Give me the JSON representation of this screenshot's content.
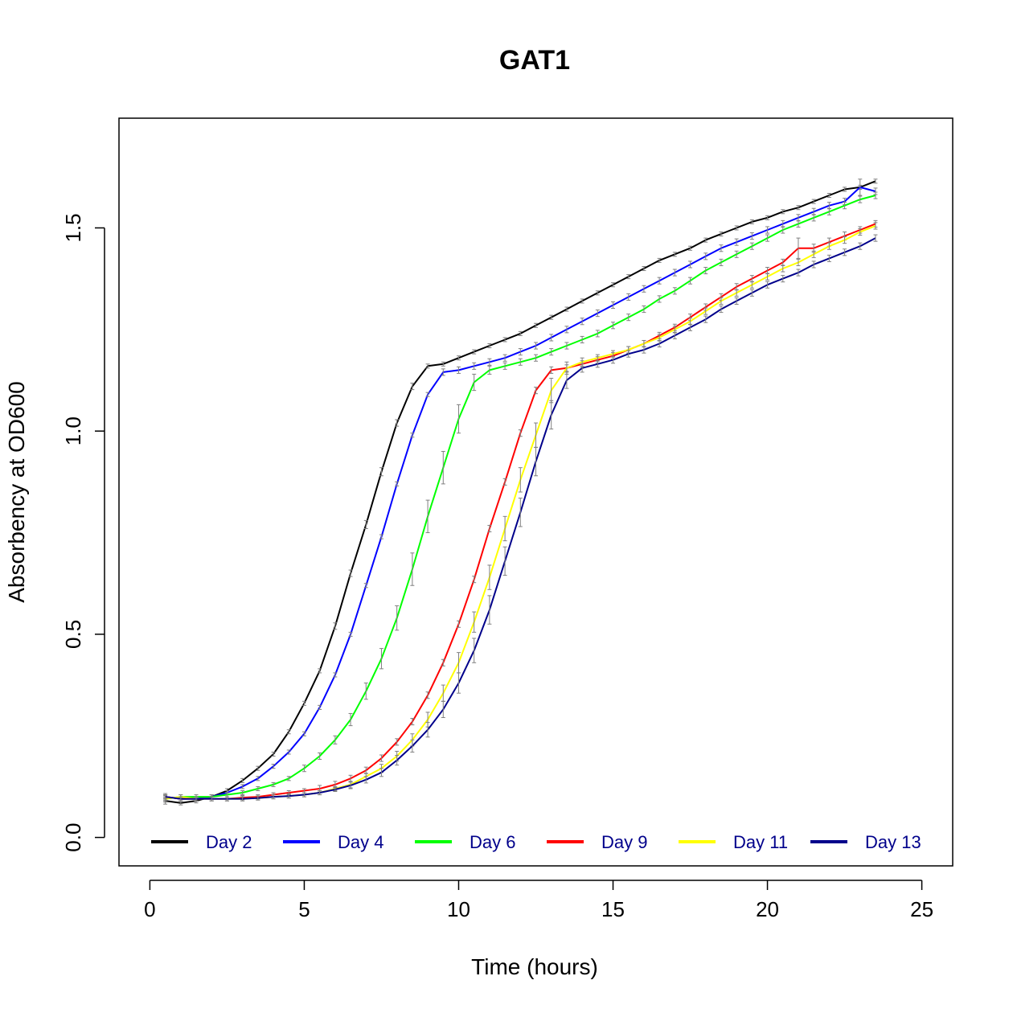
{
  "chart_data": {
    "type": "line",
    "title": "GAT1",
    "xlabel": "Time (hours)",
    "ylabel": "Absorbency at OD600",
    "xlim": [
      -1,
      26
    ],
    "ylim": [
      -0.07,
      1.77
    ],
    "xticks": [
      0,
      5,
      10,
      15,
      20,
      25
    ],
    "xtick_labels": [
      "0",
      "5",
      "10",
      "15",
      "20",
      "25"
    ],
    "yticks": [
      0,
      0.5,
      1,
      1.5
    ],
    "ytick_labels": [
      "0.0",
      "0.5",
      "1.0",
      "1.5"
    ],
    "grid": false,
    "legend_position": "bottom",
    "legend_text_color": "#00008b",
    "errorbar_color": "#808080",
    "x": [
      0.5,
      1.0,
      1.5,
      2.0,
      2.5,
      3.0,
      3.5,
      4.0,
      4.5,
      5.0,
      5.5,
      6.0,
      6.5,
      7.0,
      7.5,
      8.0,
      8.5,
      9.0,
      9.5,
      10.0,
      10.5,
      11.0,
      11.5,
      12.0,
      12.5,
      13.0,
      13.5,
      14.0,
      14.5,
      15.0,
      15.5,
      16.0,
      16.5,
      17.0,
      17.5,
      18.0,
      18.5,
      19.0,
      19.5,
      20.0,
      20.5,
      21.0,
      21.5,
      22.0,
      22.5,
      23.0,
      23.5
    ],
    "series": [
      {
        "name": "Day 2",
        "color": "#000000",
        "values": [
          0.09,
          0.085,
          0.09,
          0.1,
          0.115,
          0.14,
          0.17,
          0.205,
          0.26,
          0.33,
          0.41,
          0.52,
          0.65,
          0.77,
          0.9,
          1.02,
          1.11,
          1.16,
          1.165,
          1.18,
          1.195,
          1.21,
          1.225,
          1.24,
          1.26,
          1.28,
          1.3,
          1.32,
          1.34,
          1.36,
          1.38,
          1.4,
          1.42,
          1.435,
          1.45,
          1.47,
          1.485,
          1.5,
          1.515,
          1.525,
          1.54,
          1.55,
          1.565,
          1.58,
          1.595,
          1.6,
          1.615
        ],
        "errors": [
          0.008,
          0.005,
          0.005,
          0.005,
          0.005,
          0.005,
          0.005,
          0.005,
          0.005,
          0.005,
          0.005,
          0.008,
          0.008,
          0.01,
          0.01,
          0.008,
          0.008,
          0.005,
          0.005,
          0.005,
          0.005,
          0.005,
          0.005,
          0.005,
          0.005,
          0.005,
          0.005,
          0.005,
          0.005,
          0.005,
          0.005,
          0.005,
          0.005,
          0.005,
          0.005,
          0.005,
          0.005,
          0.005,
          0.005,
          0.005,
          0.005,
          0.005,
          0.005,
          0.005,
          0.005,
          0.005,
          0.005
        ]
      },
      {
        "name": "Day 4",
        "color": "#0000ff",
        "values": [
          0.1,
          0.095,
          0.095,
          0.1,
          0.11,
          0.125,
          0.145,
          0.175,
          0.21,
          0.255,
          0.32,
          0.4,
          0.5,
          0.62,
          0.74,
          0.87,
          0.99,
          1.09,
          1.145,
          1.15,
          1.16,
          1.17,
          1.18,
          1.195,
          1.21,
          1.23,
          1.25,
          1.27,
          1.29,
          1.31,
          1.33,
          1.35,
          1.37,
          1.39,
          1.41,
          1.43,
          1.45,
          1.465,
          1.48,
          1.495,
          1.51,
          1.525,
          1.54,
          1.555,
          1.565,
          1.6,
          1.59
        ],
        "errors": [
          0.008,
          0.005,
          0.005,
          0.005,
          0.005,
          0.005,
          0.005,
          0.005,
          0.005,
          0.005,
          0.005,
          0.005,
          0.005,
          0.005,
          0.005,
          0.005,
          0.005,
          0.005,
          0.008,
          0.008,
          0.008,
          0.008,
          0.008,
          0.008,
          0.008,
          0.008,
          0.008,
          0.008,
          0.008,
          0.008,
          0.008,
          0.008,
          0.008,
          0.008,
          0.008,
          0.008,
          0.008,
          0.008,
          0.008,
          0.008,
          0.008,
          0.008,
          0.008,
          0.008,
          0.008,
          0.02,
          0.008
        ]
      },
      {
        "name": "Day 6",
        "color": "#00ff00",
        "values": [
          0.095,
          0.1,
          0.1,
          0.1,
          0.105,
          0.11,
          0.12,
          0.13,
          0.145,
          0.17,
          0.2,
          0.24,
          0.29,
          0.36,
          0.44,
          0.54,
          0.66,
          0.79,
          0.91,
          1.03,
          1.12,
          1.15,
          1.16,
          1.17,
          1.18,
          1.195,
          1.21,
          1.225,
          1.24,
          1.26,
          1.28,
          1.3,
          1.325,
          1.345,
          1.37,
          1.395,
          1.415,
          1.435,
          1.455,
          1.475,
          1.495,
          1.51,
          1.525,
          1.54,
          1.555,
          1.57,
          1.58
        ],
        "errors": [
          0.005,
          0.005,
          0.005,
          0.005,
          0.005,
          0.005,
          0.005,
          0.005,
          0.005,
          0.008,
          0.008,
          0.01,
          0.015,
          0.02,
          0.025,
          0.03,
          0.04,
          0.04,
          0.04,
          0.035,
          0.02,
          0.01,
          0.008,
          0.008,
          0.008,
          0.008,
          0.008,
          0.008,
          0.008,
          0.008,
          0.008,
          0.008,
          0.008,
          0.008,
          0.008,
          0.008,
          0.008,
          0.008,
          0.008,
          0.008,
          0.008,
          0.008,
          0.008,
          0.008,
          0.008,
          0.008,
          0.008
        ]
      },
      {
        "name": "Day 9",
        "color": "#ff0000",
        "values": [
          0.1,
          0.095,
          0.095,
          0.095,
          0.095,
          0.098,
          0.1,
          0.105,
          0.11,
          0.115,
          0.12,
          0.13,
          0.145,
          0.165,
          0.195,
          0.235,
          0.285,
          0.35,
          0.43,
          0.525,
          0.635,
          0.76,
          0.875,
          0.995,
          1.1,
          1.15,
          1.155,
          1.165,
          1.175,
          1.185,
          1.2,
          1.215,
          1.235,
          1.255,
          1.28,
          1.305,
          1.33,
          1.355,
          1.375,
          1.395,
          1.415,
          1.45,
          1.45,
          1.465,
          1.48,
          1.495,
          1.51
        ],
        "errors": [
          0.005,
          0.005,
          0.005,
          0.005,
          0.005,
          0.005,
          0.005,
          0.005,
          0.005,
          0.005,
          0.008,
          0.008,
          0.008,
          0.008,
          0.008,
          0.008,
          0.008,
          0.008,
          0.008,
          0.008,
          0.008,
          0.008,
          0.008,
          0.008,
          0.008,
          0.008,
          0.008,
          0.008,
          0.008,
          0.008,
          0.008,
          0.008,
          0.008,
          0.008,
          0.008,
          0.008,
          0.008,
          0.008,
          0.008,
          0.008,
          0.008,
          0.025,
          0.01,
          0.01,
          0.01,
          0.008,
          0.008
        ]
      },
      {
        "name": "Day 11",
        "color": "#ffff00",
        "values": [
          0.095,
          0.1,
          0.095,
          0.095,
          0.095,
          0.095,
          0.097,
          0.1,
          0.102,
          0.105,
          0.11,
          0.12,
          0.13,
          0.15,
          0.17,
          0.2,
          0.24,
          0.29,
          0.355,
          0.43,
          0.53,
          0.64,
          0.76,
          0.88,
          0.99,
          1.1,
          1.155,
          1.17,
          1.18,
          1.19,
          1.2,
          1.215,
          1.23,
          1.25,
          1.27,
          1.295,
          1.32,
          1.34,
          1.36,
          1.38,
          1.4,
          1.415,
          1.435,
          1.455,
          1.47,
          1.49,
          1.505
        ],
        "errors": [
          0.008,
          0.005,
          0.005,
          0.005,
          0.005,
          0.005,
          0.005,
          0.005,
          0.005,
          0.005,
          0.005,
          0.005,
          0.008,
          0.008,
          0.01,
          0.012,
          0.015,
          0.018,
          0.02,
          0.025,
          0.025,
          0.03,
          0.03,
          0.03,
          0.03,
          0.03,
          0.015,
          0.01,
          0.008,
          0.008,
          0.008,
          0.008,
          0.008,
          0.008,
          0.008,
          0.008,
          0.008,
          0.008,
          0.008,
          0.008,
          0.008,
          0.008,
          0.008,
          0.008,
          0.008,
          0.008,
          0.008
        ]
      },
      {
        "name": "Day 13",
        "color": "#00008b",
        "values": [
          0.1,
          0.095,
          0.095,
          0.095,
          0.095,
          0.095,
          0.097,
          0.1,
          0.102,
          0.105,
          0.11,
          0.118,
          0.128,
          0.142,
          0.16,
          0.19,
          0.225,
          0.265,
          0.315,
          0.38,
          0.46,
          0.56,
          0.68,
          0.8,
          0.925,
          1.04,
          1.125,
          1.155,
          1.165,
          1.175,
          1.19,
          1.2,
          1.215,
          1.235,
          1.255,
          1.275,
          1.3,
          1.32,
          1.34,
          1.36,
          1.375,
          1.39,
          1.41,
          1.425,
          1.44,
          1.455,
          1.475
        ],
        "errors": [
          0.005,
          0.005,
          0.005,
          0.005,
          0.005,
          0.005,
          0.005,
          0.005,
          0.005,
          0.005,
          0.005,
          0.005,
          0.008,
          0.008,
          0.01,
          0.012,
          0.015,
          0.018,
          0.02,
          0.025,
          0.03,
          0.035,
          0.035,
          0.035,
          0.035,
          0.035,
          0.02,
          0.01,
          0.008,
          0.008,
          0.008,
          0.008,
          0.008,
          0.008,
          0.008,
          0.008,
          0.008,
          0.008,
          0.008,
          0.008,
          0.008,
          0.008,
          0.008,
          0.008,
          0.008,
          0.008,
          0.008
        ]
      }
    ]
  }
}
